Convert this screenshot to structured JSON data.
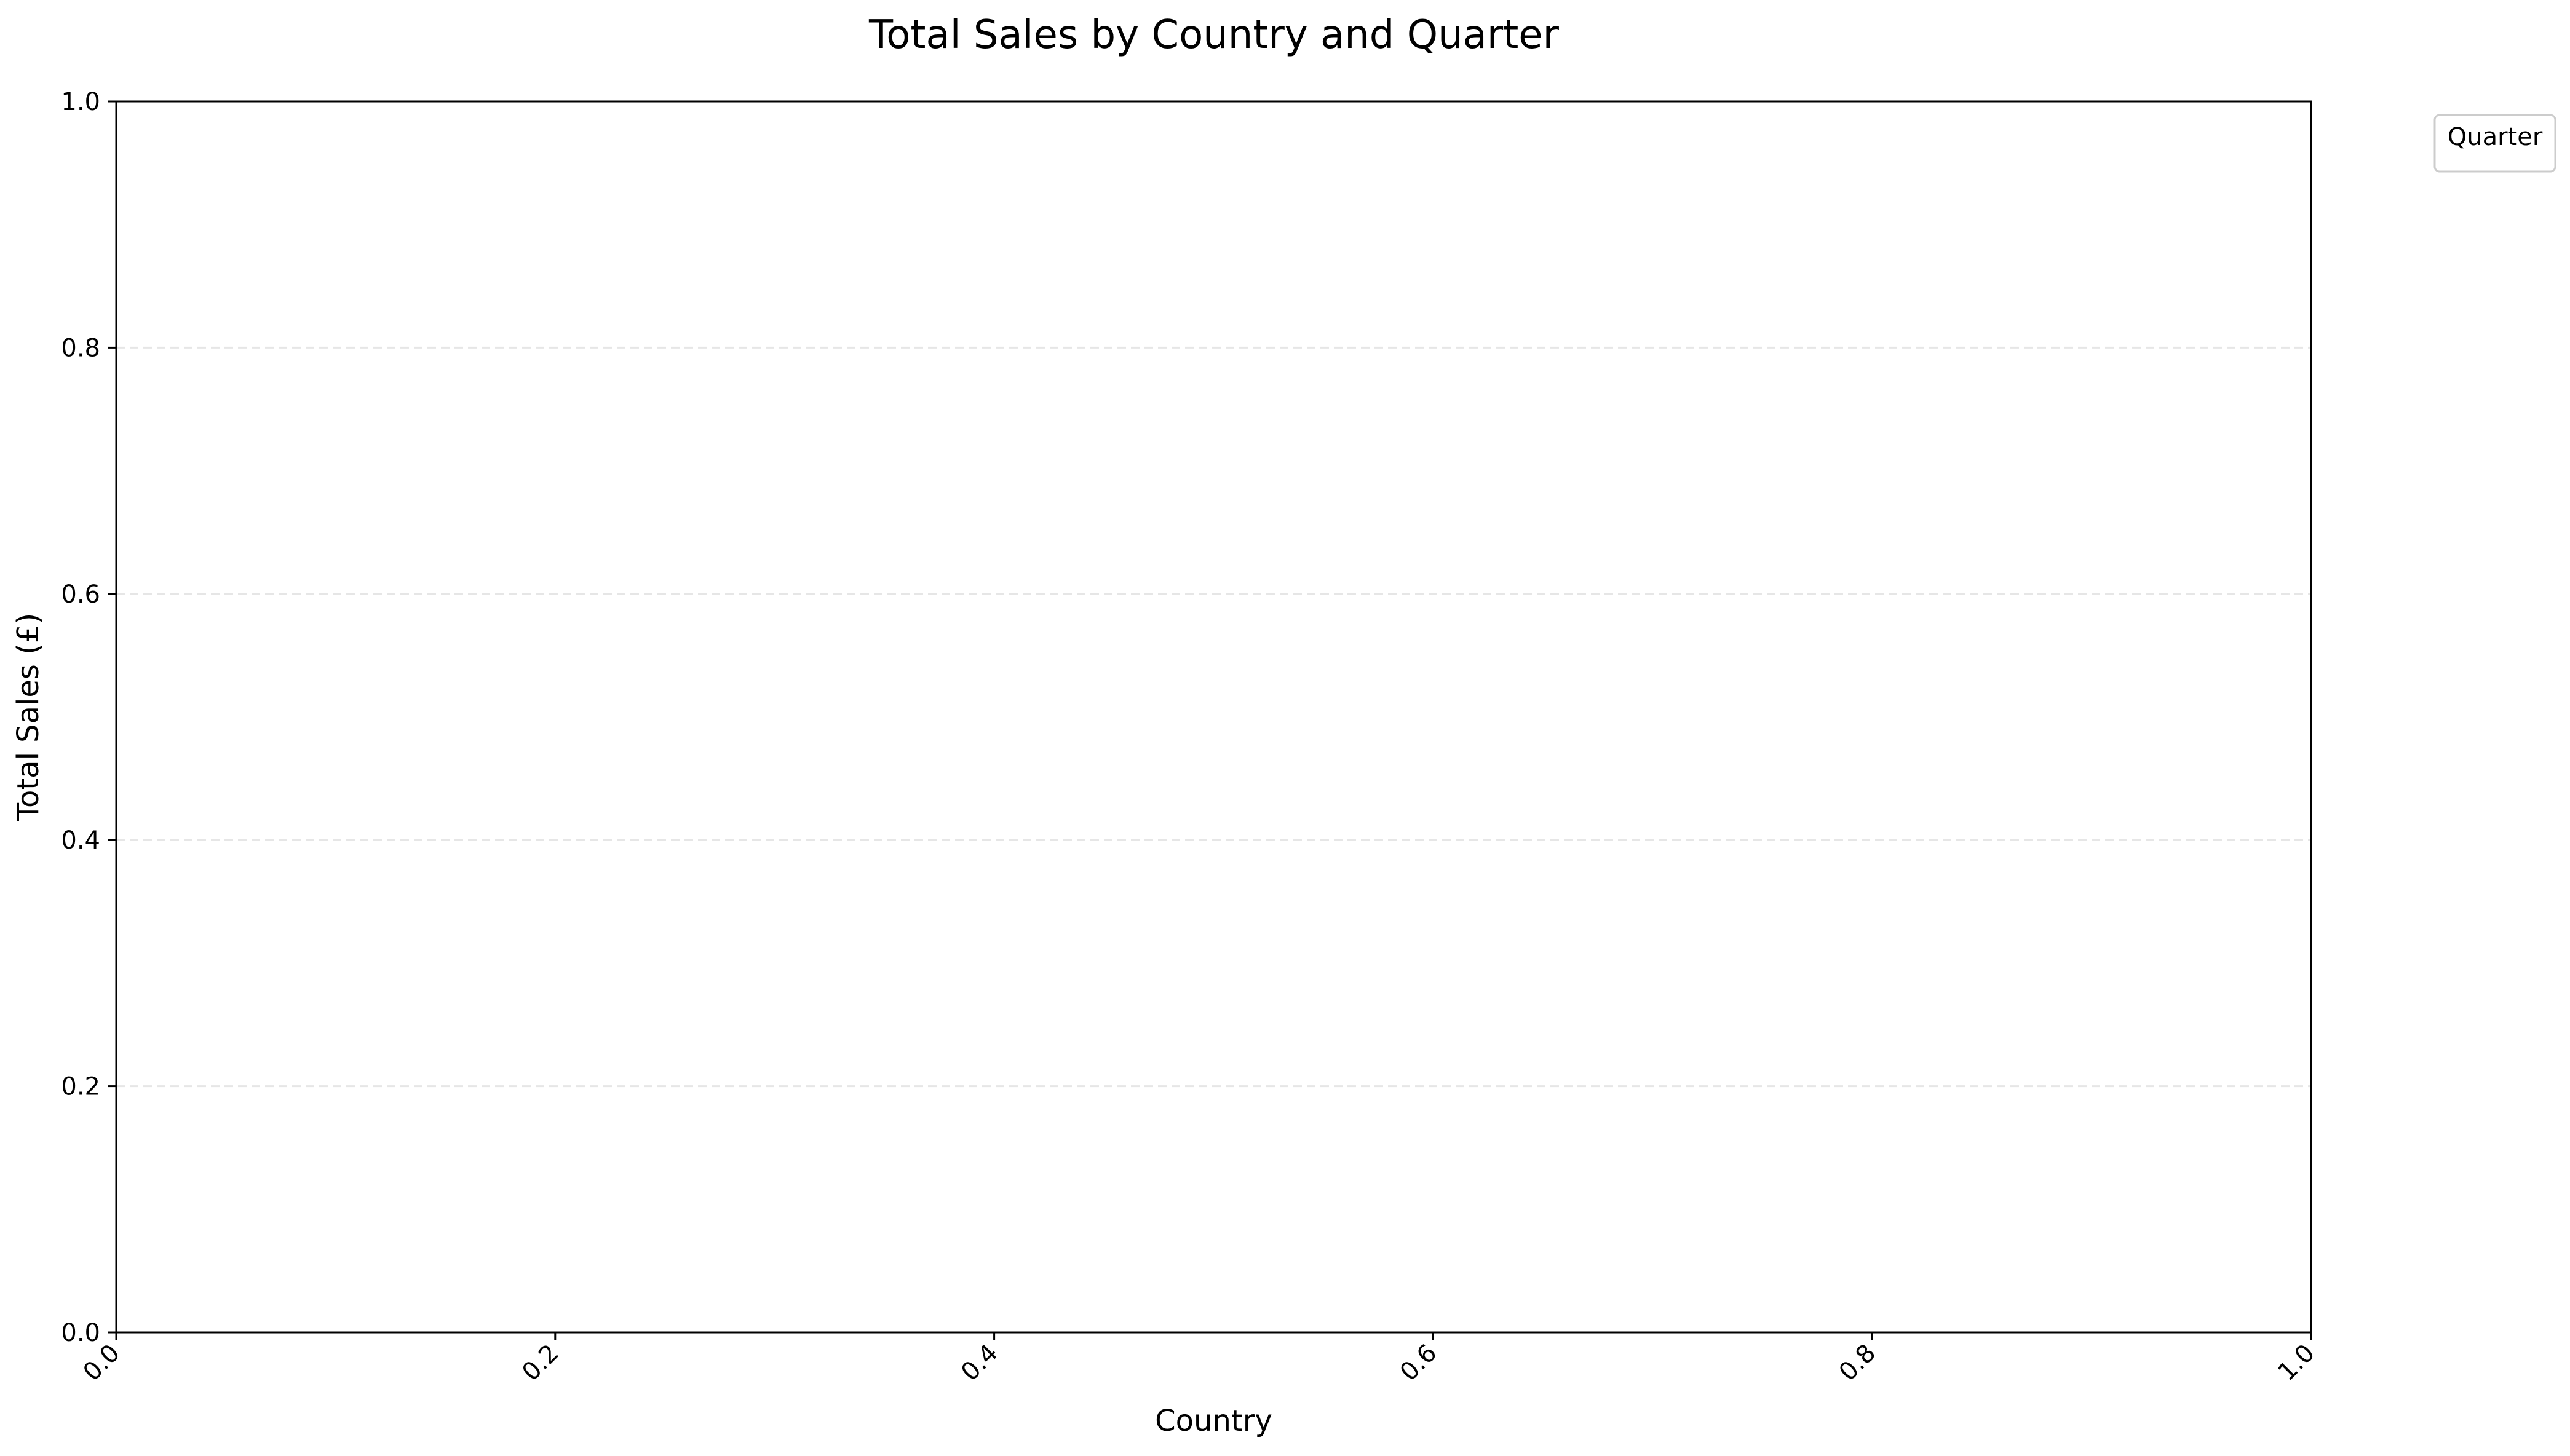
{
  "chart_data": {
    "type": "bar",
    "title": "Total Sales by Country and Quarter",
    "xlabel": "Country",
    "ylabel": "Total Sales (£)",
    "categories": [],
    "series": [],
    "xlim": [
      0.0,
      1.0
    ],
    "ylim": [
      0.0,
      1.0
    ],
    "x_ticks": [
      "0.0",
      "0.2",
      "0.4",
      "0.6",
      "0.8",
      "1.0"
    ],
    "y_ticks": [
      "0.0",
      "0.2",
      "0.4",
      "0.6",
      "0.8",
      "1.0"
    ],
    "x_tick_rotation": "45 degrees",
    "grid": "horizontal, dashed",
    "legend": {
      "title": "Quarter",
      "placement": "outside top-right",
      "entries": []
    },
    "colors": {
      "axis": "#000000",
      "grid": "#e6e6e6",
      "background": "#ffffff",
      "legend_border": "#cccccc"
    }
  }
}
